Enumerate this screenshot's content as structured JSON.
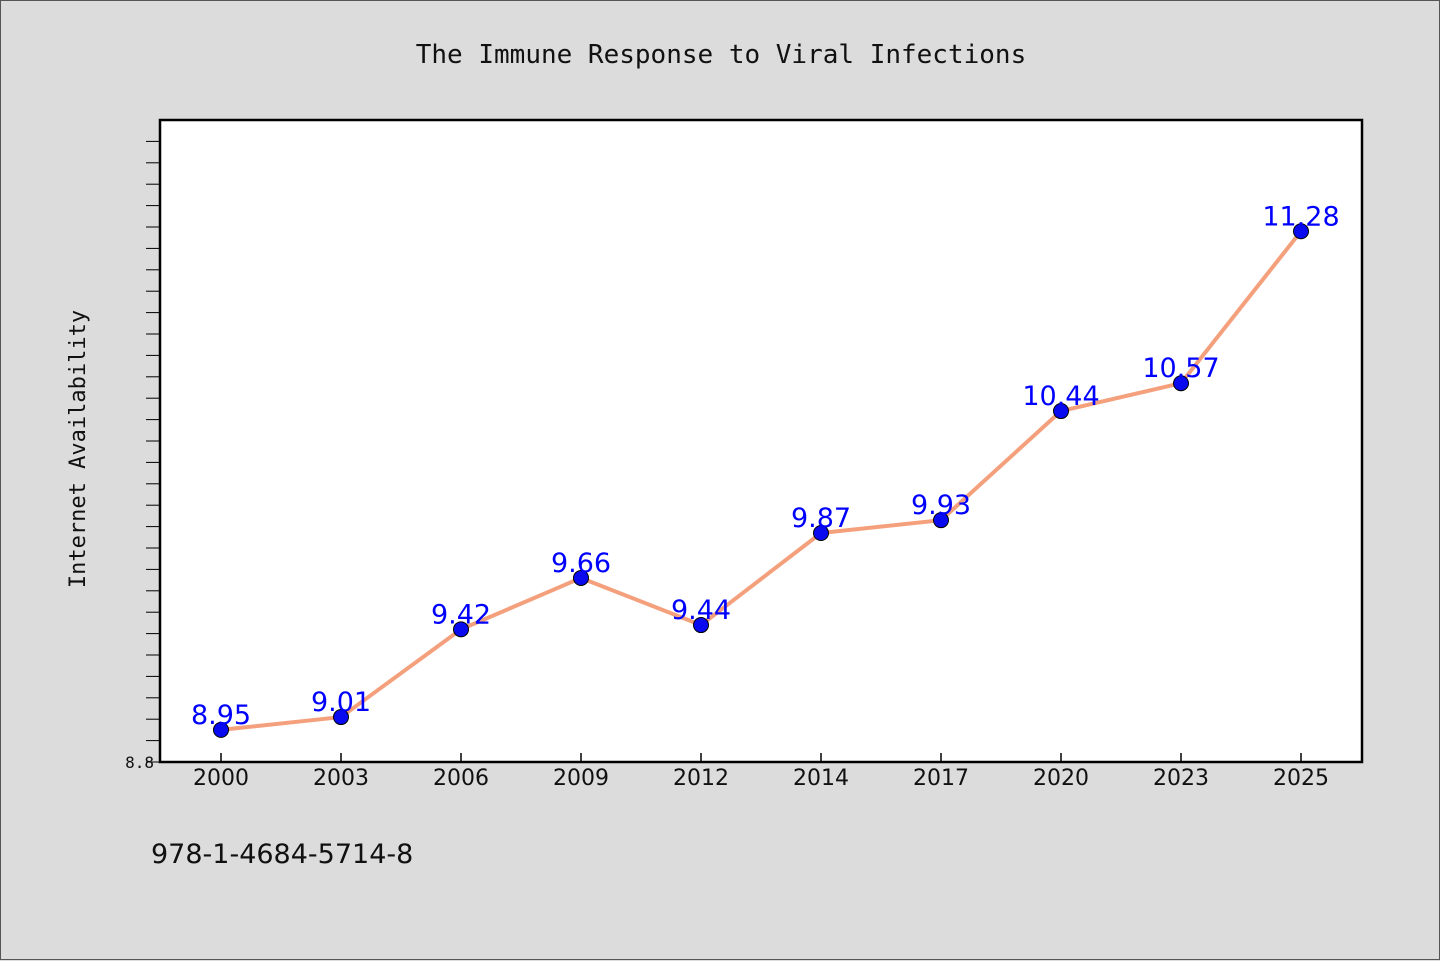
{
  "chart_data": {
    "type": "line",
    "title": "The Immune Response to Viral Infections",
    "ylabel": "Internet Availability",
    "xlabel": "",
    "categories": [
      "2000",
      "2003",
      "2006",
      "2009",
      "2012",
      "2014",
      "2017",
      "2020",
      "2023",
      "2025"
    ],
    "series": [
      {
        "values": [
          8.95,
          9.01,
          9.42,
          9.66,
          9.44,
          9.87,
          9.93,
          10.44,
          10.57,
          11.28
        ],
        "labels": [
          "8.95",
          "9.01",
          "9.42",
          "9.66",
          "9.44",
          "9.87",
          "9.93",
          "10.44",
          "10.57",
          "11.28"
        ],
        "line_color": "#f4a07c",
        "marker_color": "#0a0af0",
        "label_color": "#0000ff"
      }
    ],
    "ylim": [
      8.8,
      11.8
    ],
    "yticks": [
      "8.8"
    ],
    "grid": false,
    "legend": "none"
  },
  "footer": {
    "isbn": "978-1-4684-5714-8"
  },
  "colors": {
    "background": "#dcdcdc",
    "plot_background": "#ffffff",
    "axis": "#000000"
  }
}
